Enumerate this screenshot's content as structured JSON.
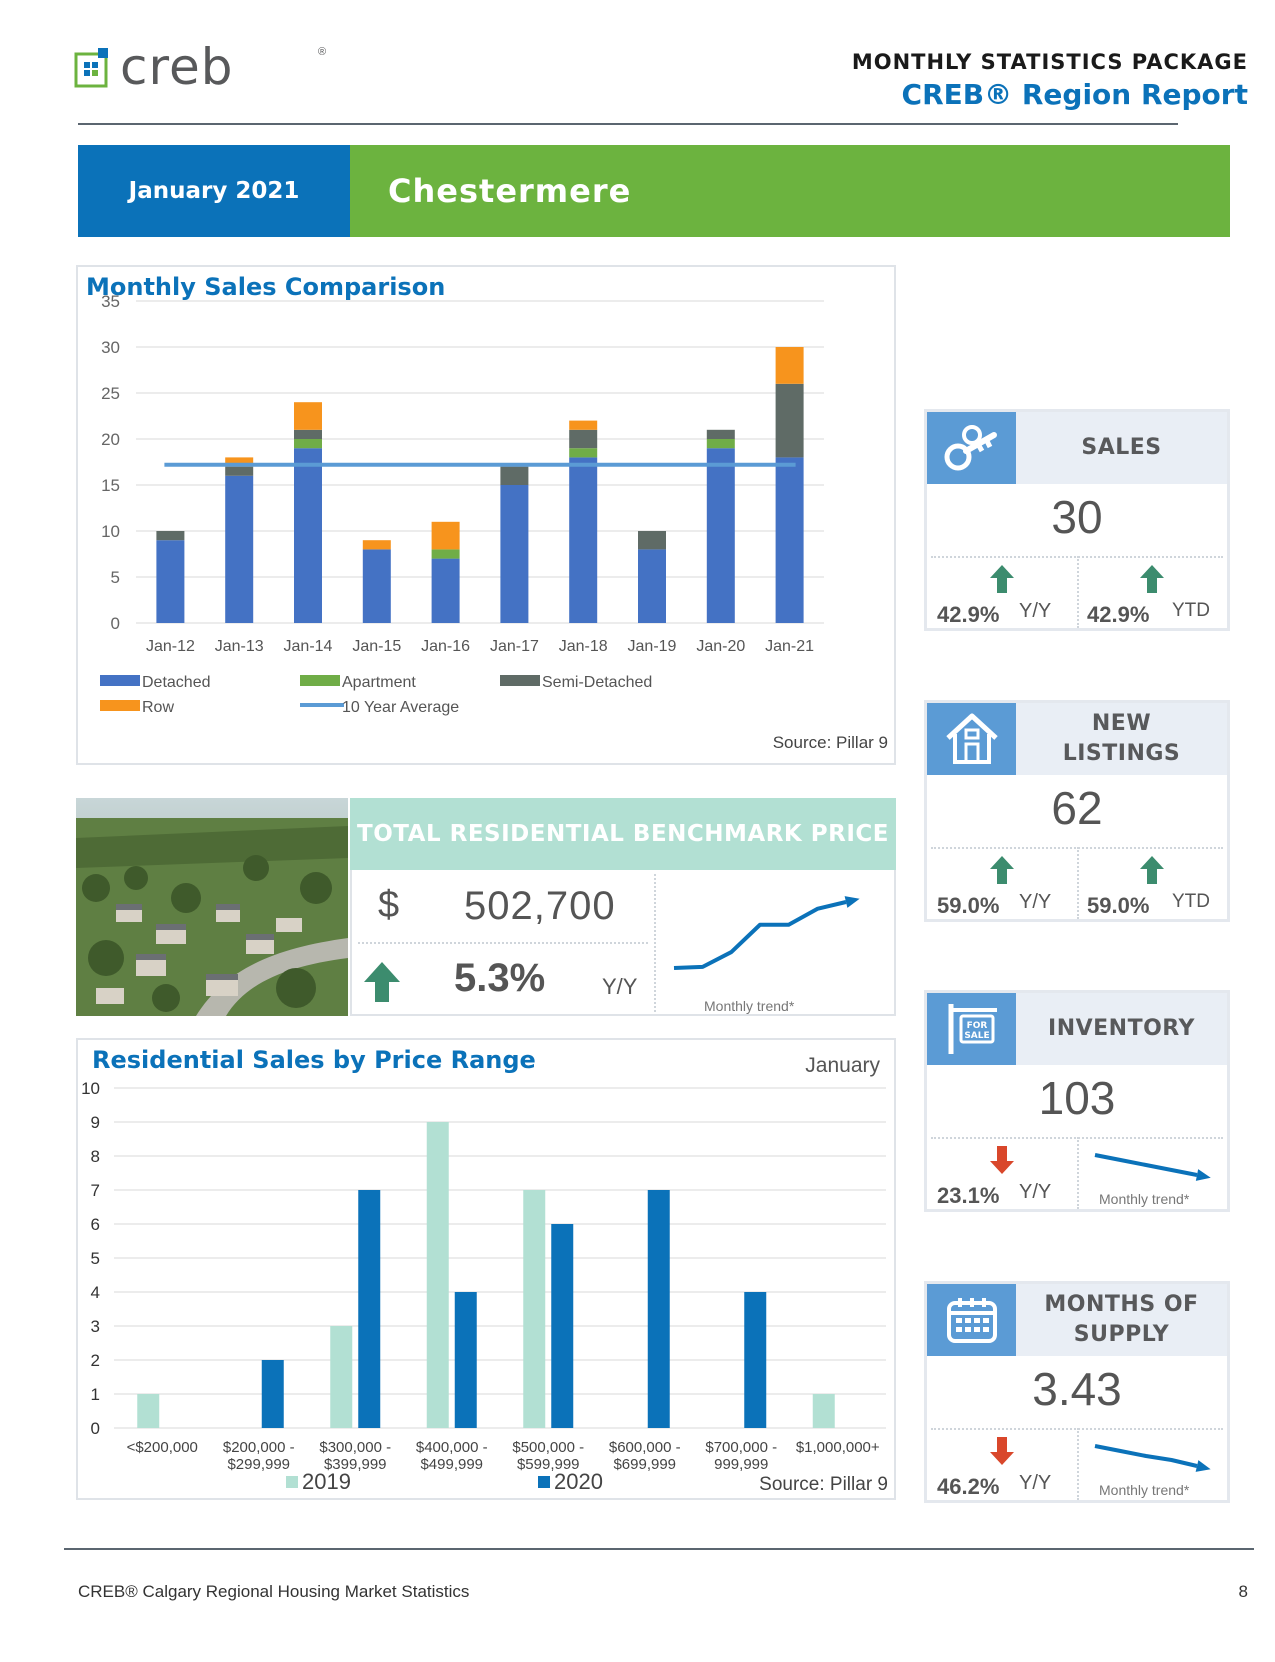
{
  "header": {
    "logo_text": "creb",
    "logo_mark": "®",
    "kicker": "MONTHLY STATISTICS PACKAGE",
    "title": "CREB® Region Report"
  },
  "banner": {
    "date": "January 2021",
    "area": "Chestermere"
  },
  "monthly_sales": {
    "title": "Monthly Sales Comparison",
    "source": "Source: Pillar 9"
  },
  "benchmark": {
    "heading": "TOTAL RESIDENTIAL BENCHMARK PRICE",
    "currency": "$",
    "price": "502,700",
    "change": "5.3%",
    "change_label": "Y/Y",
    "change_direction": "up",
    "trend_label": "Monthly trend*"
  },
  "price_range": {
    "title": "Residential Sales by Price Range",
    "month": "January",
    "source": "Source: Pillar 9"
  },
  "cards": {
    "sales": {
      "heading": "SALES",
      "icon": "key-icon",
      "value": "30",
      "yy": "42.9%",
      "yy_label": "Y/Y",
      "yy_dir": "up",
      "ytd": "42.9%",
      "ytd_label": "YTD",
      "ytd_dir": "up"
    },
    "listings": {
      "heading_1": "NEW",
      "heading_2": "LISTINGS",
      "icon": "house-icon",
      "value": "62",
      "yy": "59.0%",
      "yy_label": "Y/Y",
      "yy_dir": "up",
      "ytd": "59.0%",
      "ytd_label": "YTD",
      "ytd_dir": "up"
    },
    "inventory": {
      "heading": "INVENTORY",
      "icon": "for-sale-sign-icon",
      "value": "103",
      "yy": "23.1%",
      "yy_label": "Y/Y",
      "yy_dir": "down",
      "trend_label": "Monthly trend*"
    },
    "supply": {
      "heading_1": "MONTHS OF",
      "heading_2": "SUPPLY",
      "icon": "calendar-icon",
      "value": "3.43",
      "yy": "46.2%",
      "yy_label": "Y/Y",
      "yy_dir": "down",
      "trend_label": "Monthly trend*"
    }
  },
  "footer": {
    "text": "CREB® Calgary Regional Housing Market Statistics",
    "page": "8"
  },
  "colors": {
    "blue": "#0b72b9",
    "green": "#6cb33f",
    "detached": "#4472c4",
    "apartment": "#70ad47",
    "semi_detached": "#5f6b66",
    "row": "#f7941d",
    "average": "#5b9bd5",
    "bar_2019": "#b2e0d3",
    "bar_2020": "#0b72b9",
    "up_arrow": "#3c8c6e",
    "down_arrow": "#d9472b"
  },
  "chart_data": [
    {
      "type": "bar",
      "stacked": true,
      "title": "Monthly Sales Comparison",
      "categories": [
        "Jan-12",
        "Jan-13",
        "Jan-14",
        "Jan-15",
        "Jan-16",
        "Jan-17",
        "Jan-18",
        "Jan-19",
        "Jan-20",
        "Jan-21"
      ],
      "series": [
        {
          "name": "Detached",
          "values": [
            9,
            16,
            19,
            8,
            7,
            15,
            18,
            8,
            19,
            18
          ]
        },
        {
          "name": "Apartment",
          "values": [
            0,
            0,
            1,
            0,
            1,
            0,
            1,
            0,
            1,
            0
          ]
        },
        {
          "name": "Semi-Detached",
          "values": [
            1,
            1,
            1,
            0,
            0,
            2,
            2,
            2,
            1,
            8
          ]
        },
        {
          "name": "Row",
          "values": [
            0,
            1,
            3,
            1,
            3,
            0,
            1,
            0,
            0,
            4
          ]
        }
      ],
      "line": {
        "name": "10 Year Average",
        "value": 17.2
      },
      "ylim": [
        0,
        35
      ],
      "yticks": [
        0,
        5,
        10,
        15,
        20,
        25,
        30,
        35
      ],
      "grid": true,
      "legend": "bottom"
    },
    {
      "type": "bar",
      "title": "Residential Sales by Price Range",
      "categories": [
        "<$200,000",
        "$200,000 -\n$299,999",
        "$300,000 -\n$399,999",
        "$400,000 -\n$499,999",
        "$500,000 -\n$599,999",
        "$600,000 -\n$699,999",
        "$700,000 -\n999,999",
        "$1,000,000+"
      ],
      "series": [
        {
          "name": "2019",
          "values": [
            1,
            0,
            3,
            9,
            7,
            0,
            0,
            1
          ]
        },
        {
          "name": "2020",
          "values": [
            0,
            2,
            7,
            4,
            6,
            7,
            4,
            0
          ]
        }
      ],
      "ylim": [
        0,
        10
      ],
      "yticks": [
        0,
        1,
        2,
        3,
        4,
        5,
        6,
        7,
        8,
        9,
        10
      ],
      "grid": true,
      "legend": "bottom"
    },
    {
      "type": "line",
      "title": "",
      "series": [
        {
          "name": "",
          "values": [
            1,
            1.05,
            1.7,
            2.9,
            2.9,
            3.6,
            3.9
          ]
        }
      ]
    },
    {
      "type": "line",
      "title": "",
      "series": [
        {
          "name": "",
          "values": [
            3.0,
            2.7,
            2.4,
            2.1,
            1.8
          ]
        }
      ]
    },
    {
      "type": "line",
      "title": "",
      "series": [
        {
          "name": "",
          "values": [
            3.0,
            2.75,
            2.5,
            2.3,
            2.0
          ]
        }
      ]
    }
  ]
}
